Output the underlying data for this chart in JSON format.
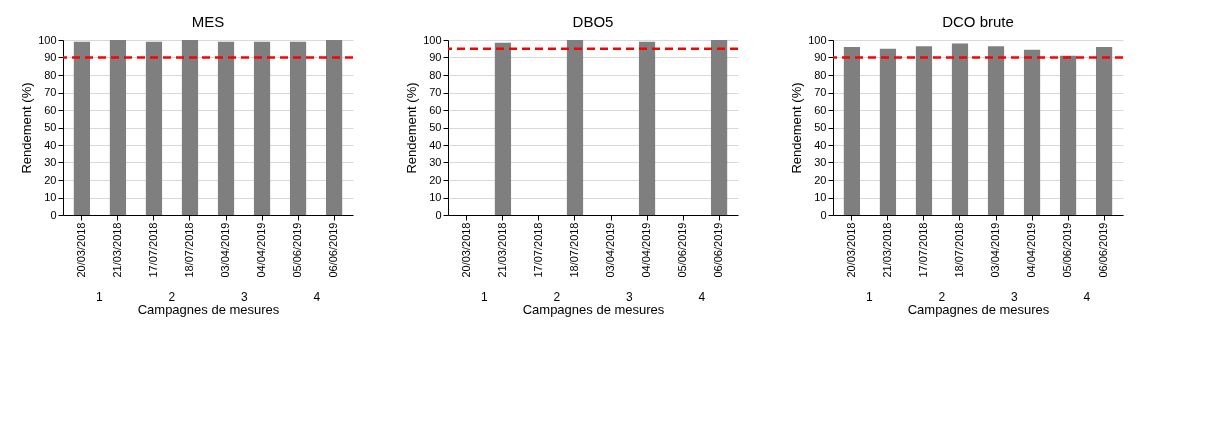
{
  "chart_data": [
    {
      "type": "bar",
      "title": "MES",
      "xlabel": "Campagnes de mesures",
      "ylabel": "Rendement (%)",
      "categories": [
        "20/03/2018",
        "21/03/2018",
        "17/07/2018",
        "18/07/2018",
        "03/04/2019",
        "04/04/2019",
        "05/06/2019",
        "06/06/2019"
      ],
      "values": [
        99,
        100,
        99,
        100,
        99,
        99,
        99,
        100
      ],
      "color": "#7f7f7f",
      "ylim": [
        0,
        100
      ],
      "yticks": [
        0,
        10,
        20,
        30,
        40,
        50,
        60,
        70,
        80,
        90,
        100
      ],
      "grid": "y",
      "ref_lines": [
        {
          "axis": "y",
          "value": 90,
          "color": "#ff0000",
          "line_style": "dashed"
        }
      ],
      "annotations": [
        "1",
        "2",
        "3",
        "4"
      ]
    },
    {
      "type": "bar",
      "title": "DBO5",
      "xlabel": "Campagnes de mesures",
      "ylabel": "Rendement (%)",
      "categories": [
        "20/03/2018",
        "21/03/2018",
        "17/07/2018",
        "18/07/2018",
        "03/04/2019",
        "04/04/2019",
        "05/06/2019",
        "06/06/2019"
      ],
      "values": [
        null,
        98.5,
        null,
        100,
        null,
        99,
        null,
        100
      ],
      "color": "#7f7f7f",
      "ylim": [
        0,
        100
      ],
      "yticks": [
        0,
        10,
        20,
        30,
        40,
        50,
        60,
        70,
        80,
        90,
        100
      ],
      "grid": "y",
      "ref_lines": [
        {
          "axis": "y",
          "value": 95,
          "color": "#ff0000",
          "line_style": "dashed"
        }
      ],
      "annotations": [
        "1",
        "2",
        "3",
        "4"
      ]
    },
    {
      "type": "bar",
      "title": "DCO brute",
      "xlabel": "Campagnes de mesures",
      "ylabel": "Rendement (%)",
      "categories": [
        "20/03/2018",
        "21/03/2018",
        "17/07/2018",
        "18/07/2018",
        "03/04/2019",
        "04/04/2019",
        "05/06/2019",
        "06/06/2019"
      ],
      "values": [
        96,
        95,
        96.5,
        98,
        96.5,
        94.5,
        91,
        96
      ],
      "color": "#7f7f7f",
      "ylim": [
        0,
        100
      ],
      "yticks": [
        0,
        10,
        20,
        30,
        40,
        50,
        60,
        70,
        80,
        90,
        100
      ],
      "grid": "y",
      "ref_lines": [
        {
          "axis": "y",
          "value": 90,
          "color": "#ff0000",
          "line_style": "dashed"
        }
      ],
      "annotations": [
        "1",
        "2",
        "3",
        "4"
      ]
    }
  ]
}
